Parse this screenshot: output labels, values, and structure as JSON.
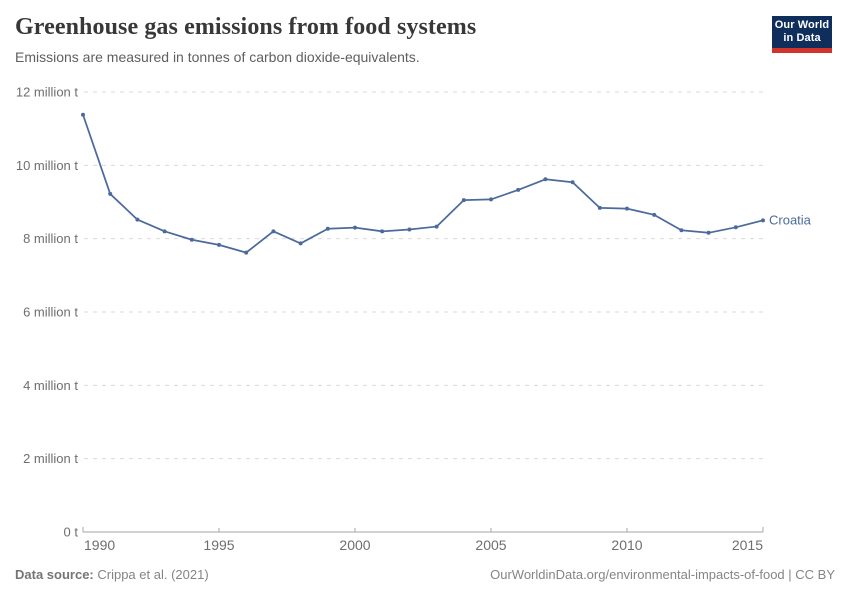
{
  "header": {
    "title": "Greenhouse gas emissions from food systems",
    "subtitle": "Emissions are measured in tonnes of carbon dioxide-equivalents."
  },
  "logo": {
    "line1": "Our World",
    "line2": "in Data"
  },
  "chart_data": {
    "type": "line",
    "title": "Greenhouse gas emissions from food systems",
    "xlabel": "",
    "ylabel": "",
    "unit": "tonnes of CO2-equivalents",
    "x": [
      1990,
      1991,
      1992,
      1993,
      1994,
      1995,
      1996,
      1997,
      1998,
      1999,
      2000,
      2001,
      2002,
      2003,
      2004,
      2005,
      2006,
      2007,
      2008,
      2009,
      2010,
      2011,
      2012,
      2013,
      2014,
      2015
    ],
    "series": [
      {
        "name": "Croatia",
        "color": "#4C6A9C",
        "values": [
          11380000,
          9220000,
          8520000,
          8200000,
          7970000,
          7830000,
          7620000,
          8200000,
          7870000,
          8270000,
          8300000,
          8200000,
          8250000,
          8330000,
          9050000,
          9070000,
          9330000,
          9620000,
          9540000,
          8840000,
          8820000,
          8650000,
          8230000,
          8160000,
          8310000,
          8500000
        ]
      }
    ],
    "ylim": [
      0,
      12000000
    ],
    "yticks": [
      0,
      2000000,
      4000000,
      6000000,
      8000000,
      10000000,
      12000000
    ],
    "ytick_labels": [
      "0 t",
      "2 million t",
      "4 million t",
      "6 million t",
      "8 million t",
      "10 million t",
      "12 million t"
    ],
    "xticks": [
      1990,
      1995,
      2000,
      2005,
      2010,
      2015
    ],
    "grid": true,
    "legend_position": "end-of-line-label",
    "colors": {
      "line": "#4C6A9C",
      "grid": "#dadada",
      "axis": "#a6a6a6",
      "tick_label": "#6e6e6e"
    }
  },
  "footer": {
    "datasource_label": "Data source:",
    "datasource_value": " Crippa et al. (2021)",
    "license": "OurWorldinData.org/environmental-impacts-of-food | CC BY"
  }
}
